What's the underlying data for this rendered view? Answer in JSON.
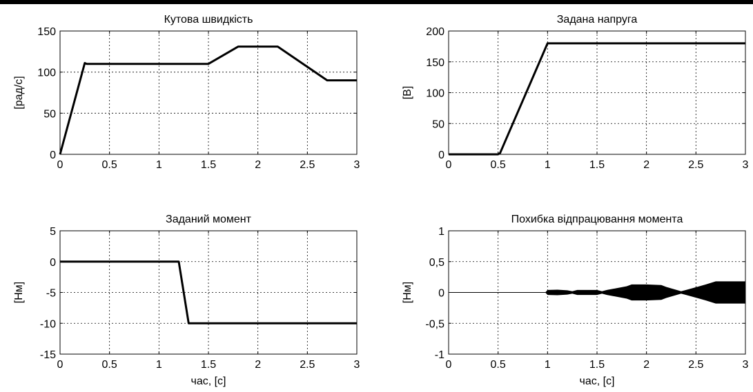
{
  "chart_data": [
    {
      "type": "line",
      "title": "Кутова швидкість",
      "xlabel": "",
      "ylabel": "[рад/с]",
      "xlim": [
        0,
        3
      ],
      "ylim": [
        0,
        150
      ],
      "xticks": [
        0,
        0.5,
        1,
        1.5,
        2,
        2.5,
        3
      ],
      "xtick_labels": [
        "0",
        "0.5",
        "1",
        "1.5",
        "2",
        "2.5",
        "3"
      ],
      "yticks": [
        0,
        50,
        100,
        150
      ],
      "ytick_labels": [
        "0",
        "50",
        "100",
        "150"
      ],
      "grid": true,
      "series": [
        {
          "x": [
            0,
            0.25,
            0.27,
            1.5,
            1.8,
            2.2,
            2.7,
            3.0
          ],
          "y": [
            0,
            111,
            110,
            110,
            131,
            131,
            90,
            90
          ]
        }
      ]
    },
    {
      "type": "line",
      "title": "Задана напруга",
      "xlabel": "",
      "ylabel": "[В]",
      "xlim": [
        0,
        3
      ],
      "ylim": [
        0,
        200
      ],
      "xticks": [
        0,
        0.5,
        1,
        1.5,
        2,
        2.5,
        3
      ],
      "xtick_labels": [
        "0",
        "0.5",
        "1",
        "1.5",
        "2",
        "2.5",
        "3"
      ],
      "yticks": [
        0,
        50,
        100,
        150,
        200
      ],
      "ytick_labels": [
        "0",
        "50",
        "100",
        "150",
        "200"
      ],
      "grid": true,
      "series": [
        {
          "x": [
            0,
            0.5,
            0.52,
            1.0,
            3.0
          ],
          "y": [
            0,
            0,
            2,
            180,
            180
          ]
        }
      ]
    },
    {
      "type": "line",
      "title": "Заданий момент",
      "xlabel": "час, [с]",
      "ylabel": "[Нм]",
      "xlim": [
        0,
        3
      ],
      "ylim": [
        -15,
        5
      ],
      "xticks": [
        0,
        0.5,
        1,
        1.5,
        2,
        2.5,
        3
      ],
      "xtick_labels": [
        "0",
        "0.5",
        "1",
        "1.5",
        "2",
        "2.5",
        "3"
      ],
      "yticks": [
        -15,
        -10,
        -5,
        0,
        5
      ],
      "ytick_labels": [
        "-15",
        "-10",
        "-5",
        "0",
        "5"
      ],
      "grid": true,
      "series": [
        {
          "x": [
            0,
            1.2,
            1.3,
            3.0
          ],
          "y": [
            0,
            0,
            -10,
            -10
          ]
        }
      ]
    },
    {
      "type": "area",
      "title": "Похибка відпрацювання момента",
      "xlabel": "час, [с]",
      "ylabel": "[Нм]",
      "xlim": [
        0,
        3
      ],
      "ylim": [
        -1,
        1
      ],
      "xticks": [
        0,
        0.5,
        1,
        1.5,
        2,
        2.5,
        3
      ],
      "xtick_labels": [
        "0",
        "0.5",
        "1",
        "1.5",
        "2",
        "2.5",
        "3"
      ],
      "yticks": [
        -1,
        -0.5,
        0,
        0.5,
        1
      ],
      "ytick_labels": [
        "-1",
        "-0,5",
        "0",
        "0,5",
        "1"
      ],
      "grid": true,
      "series": [
        {
          "x": [
            0,
            0.98,
            1.0,
            1.1,
            1.2,
            1.25,
            1.3,
            1.5,
            1.55,
            1.6,
            1.8,
            1.85,
            2.0,
            2.15,
            2.2,
            2.35,
            2.4,
            2.6,
            2.7,
            3.0
          ],
          "envelope": [
            0.005,
            0.005,
            0.04,
            0.045,
            0.035,
            0.02,
            0.04,
            0.04,
            0.02,
            0.04,
            0.1,
            0.13,
            0.13,
            0.12,
            0.09,
            0.02,
            0.04,
            0.13,
            0.18,
            0.18
          ]
        }
      ]
    }
  ]
}
